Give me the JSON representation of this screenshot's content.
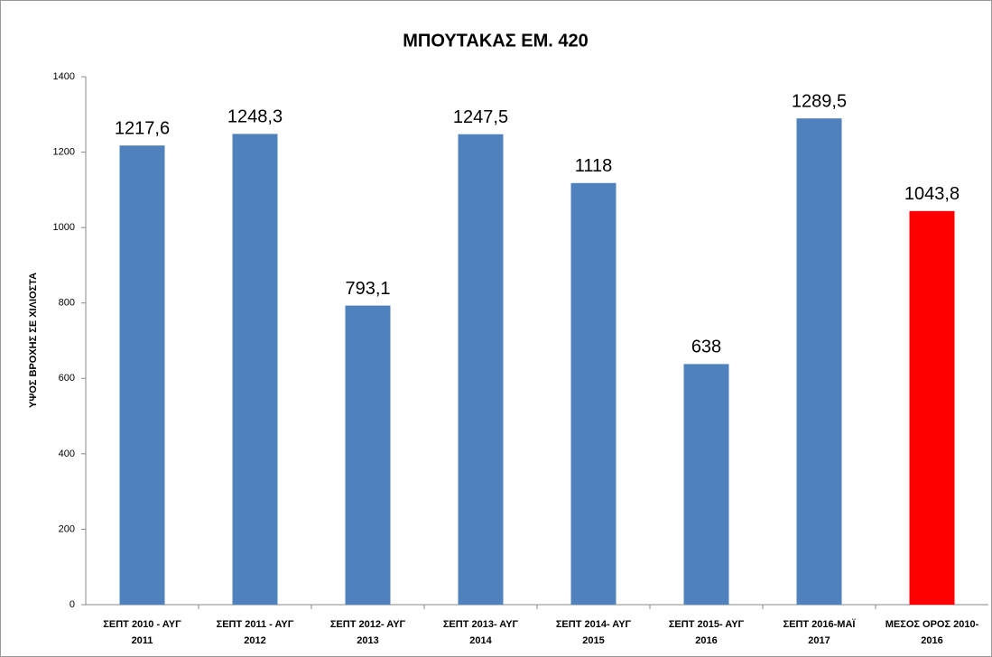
{
  "chart_data": {
    "type": "bar",
    "title": "ΜΠΟΥΤΑΚΑΣ ΕΜ.   420",
    "y_label": "ΥΨΟΣ ΒΡΟΧΗΣ  ΣΕ ΧΙΛΙΟΣΤΑ",
    "categories": [
      [
        "ΣΕΠΤ 2010 - ΑΥΓ",
        "2011"
      ],
      [
        "ΣΕΠΤ 2011 - ΑΥΓ",
        "2012"
      ],
      [
        "ΣΕΠΤ 2012- ΑΥΓ",
        "2013"
      ],
      [
        "ΣΕΠΤ 2013- ΑΥΓ",
        "2014"
      ],
      [
        "ΣΕΠΤ 2014- ΑΥΓ",
        "2015"
      ],
      [
        "ΣΕΠΤ 2015- ΑΥΓ",
        "2016"
      ],
      [
        "ΣΕΠΤ 2016-ΜΑΪ",
        "2017"
      ],
      [
        "ΜΕΣΟΣ ΟΡΟΣ 2010-",
        "2016"
      ]
    ],
    "values": [
      1217.6,
      1248.3,
      793.1,
      1247.5,
      1118,
      638,
      1289.5,
      1043.8
    ],
    "value_labels": [
      "1217,6",
      "1248,3",
      "793,1",
      "1247,5",
      "1118",
      "638",
      "1289,5",
      "1043,8"
    ],
    "colors": [
      "#4f81bd",
      "#4f81bd",
      "#4f81bd",
      "#4f81bd",
      "#4f81bd",
      "#4f81bd",
      "#4f81bd",
      "#ff0000"
    ],
    "ylim": [
      0,
      1400
    ],
    "yticks": [
      0,
      200,
      400,
      600,
      800,
      1000,
      1200,
      1400
    ],
    "grid": false
  }
}
